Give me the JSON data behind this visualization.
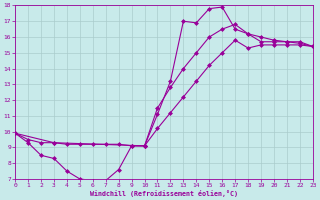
{
  "xlabel": "Windchill (Refroidissement éolien,°C)",
  "bg_color": "#c8eaea",
  "line_color": "#990099",
  "xmin": 0,
  "xmax": 23,
  "ymin": 7,
  "ymax": 18,
  "curve1_x": [
    0,
    1,
    2,
    3,
    4,
    5,
    6,
    7,
    8,
    9,
    10,
    11,
    12,
    13,
    14,
    15,
    16,
    17,
    18,
    19,
    20,
    21,
    22,
    23
  ],
  "curve1_y": [
    9.9,
    9.3,
    8.5,
    8.3,
    7.5,
    7.0,
    6.9,
    6.9,
    7.6,
    9.1,
    9.1,
    11.1,
    13.2,
    17.0,
    16.9,
    17.8,
    17.9,
    16.5,
    16.2,
    15.7,
    15.7,
    15.7,
    15.7,
    15.4
  ],
  "curve2_x": [
    0,
    1,
    2,
    3,
    4,
    5,
    6,
    7,
    8,
    9,
    10,
    11,
    12,
    13,
    14,
    15,
    16,
    17,
    18,
    19,
    20,
    21,
    22,
    23
  ],
  "curve2_y": [
    9.9,
    9.5,
    9.3,
    9.3,
    9.2,
    9.2,
    9.2,
    9.2,
    9.2,
    9.1,
    9.1,
    10.2,
    11.2,
    12.2,
    13.2,
    14.2,
    15.0,
    15.8,
    15.3,
    15.5,
    15.5,
    15.5,
    15.5,
    15.4
  ],
  "curve3_x": [
    0,
    3,
    10,
    11,
    12,
    13,
    14,
    15,
    16,
    17,
    18,
    19,
    20,
    21,
    22,
    23
  ],
  "curve3_y": [
    9.9,
    9.3,
    9.1,
    11.5,
    12.8,
    14.0,
    15.0,
    16.0,
    16.5,
    16.8,
    16.2,
    16.0,
    15.8,
    15.7,
    15.6,
    15.4
  ],
  "grid_color": "#aacccc",
  "marker": "D",
  "markersize": 2.5,
  "linewidth": 0.8
}
